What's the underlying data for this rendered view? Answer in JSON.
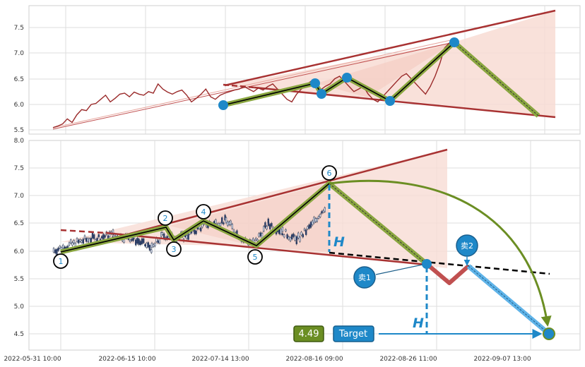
{
  "chart_data": [
    {
      "type": "line",
      "panel": "top",
      "title": "",
      "xlabel": "",
      "ylabel": "",
      "ylim": [
        5.45,
        8.0
      ],
      "yticks": [
        "5.5",
        "6.0",
        "6.5",
        "7.0",
        "7.5"
      ],
      "grid": true,
      "series": [
        {
          "values_note": "",
          "x": [
            0,
            2,
            4,
            6,
            8,
            10,
            12,
            14,
            16,
            18,
            20,
            22,
            24,
            26,
            28,
            30,
            32,
            34,
            36,
            38,
            40,
            42,
            44,
            46,
            48,
            50,
            52,
            54,
            56,
            58,
            60,
            62,
            64,
            66,
            68,
            70,
            72,
            74,
            76,
            78,
            80,
            82,
            84,
            86,
            88,
            90,
            92,
            94,
            96,
            98,
            100,
            102,
            104,
            106,
            108,
            110,
            112,
            114,
            116,
            118,
            120,
            122,
            124,
            126,
            128,
            130,
            132,
            134,
            136,
            138,
            140,
            142,
            144,
            146,
            148,
            150,
            152,
            154,
            156,
            158,
            160,
            162,
            164,
            166
          ],
          "values": [
            5.55,
            5.58,
            5.62,
            5.72,
            5.65,
            5.8,
            5.9,
            5.88,
            6.0,
            6.02,
            6.1,
            6.18,
            6.05,
            6.12,
            6.2,
            6.22,
            6.15,
            6.24,
            6.2,
            6.18,
            6.25,
            6.22,
            6.4,
            6.3,
            6.24,
            6.2,
            6.25,
            6.28,
            6.18,
            6.05,
            6.12,
            6.2,
            6.3,
            6.15,
            6.1,
            6.18,
            6.22,
            6.25,
            6.28,
            6.3,
            6.35,
            6.3,
            6.25,
            6.32,
            6.28,
            6.35,
            6.4,
            6.3,
            6.2,
            6.1,
            6.05,
            6.2,
            6.3,
            6.38,
            6.45,
            6.35,
            6.28,
            6.35,
            6.4,
            6.5,
            6.55,
            6.45,
            6.35,
            6.25,
            6.3,
            6.35,
            6.2,
            6.1,
            6.05,
            6.15,
            6.25,
            6.35,
            6.45,
            6.55,
            6.6,
            6.5,
            6.4,
            6.3,
            6.2,
            6.35,
            6.55,
            6.8,
            7.1,
            7.2
          ]
        }
      ],
      "pattern_points": [
        {
          "x": 100,
          "y": 5.98
        },
        {
          "x": 152,
          "y": 6.4
        },
        {
          "x": 156,
          "y": 6.2
        },
        {
          "x": 168,
          "y": 6.5
        },
        {
          "x": 196,
          "y": 6.06
        },
        {
          "x": 244,
          "y": 7.22
        },
        {
          "x": 298,
          "y": 5.78
        }
      ],
      "upper_line": [
        [
          0,
          5.52
        ],
        [
          300,
          7.82
        ]
      ],
      "lower_line": [
        [
          100,
          6.38
        ],
        [
          300,
          5.75
        ]
      ]
    },
    {
      "type": "line",
      "panel": "bottom",
      "title": "",
      "xlabel": "",
      "ylabel": "",
      "ylim": [
        4.3,
        8.0
      ],
      "yticks": [
        "4.5",
        "5.0",
        "5.5",
        "6.0",
        "6.5",
        "7.0",
        "7.5",
        "8.0"
      ],
      "xticks": [
        "2022-05-31 10:00",
        "2022-06-15 10:00",
        "2022-07-14 13:00",
        "2022-08-16 09:00",
        "2022-08-26 11:00",
        "2022-09-07 13:00"
      ],
      "grid": true,
      "pattern_points": [
        {
          "label": "1",
          "x": 0,
          "y": 5.97
        },
        {
          "label": "2",
          "x": 150,
          "y": 6.42
        },
        {
          "label": "3",
          "x": 160,
          "y": 6.22
        },
        {
          "label": "4",
          "x": 200,
          "y": 6.55
        },
        {
          "label": "5",
          "x": 275,
          "y": 6.07
        },
        {
          "label": "6",
          "x": 380,
          "y": 7.24
        }
      ],
      "sell_points": [
        {
          "label": "卖1",
          "x": 520,
          "y": 5.78
        },
        {
          "label": "卖2",
          "x": 575,
          "y": 5.77
        }
      ],
      "dip": {
        "x": 550,
        "y": 5.38
      },
      "target": {
        "label": "Target",
        "value": "4.49",
        "x": 700,
        "y": 4.49
      },
      "height_label": "H"
    }
  ],
  "target_box_label": "Target",
  "target_value": "4.49",
  "h_label": "H",
  "sell1_label": "卖1",
  "sell2_label": "卖2",
  "colors": {
    "line": "#9a2a2a",
    "trend": "#a83232",
    "fill": "#f8dcd4",
    "pattern_outer": "#8aa640",
    "pattern_inner": "#000000",
    "blue": "#1e88c8",
    "green_box": "#6b8e23",
    "arrow_green": "#6b8e23"
  }
}
